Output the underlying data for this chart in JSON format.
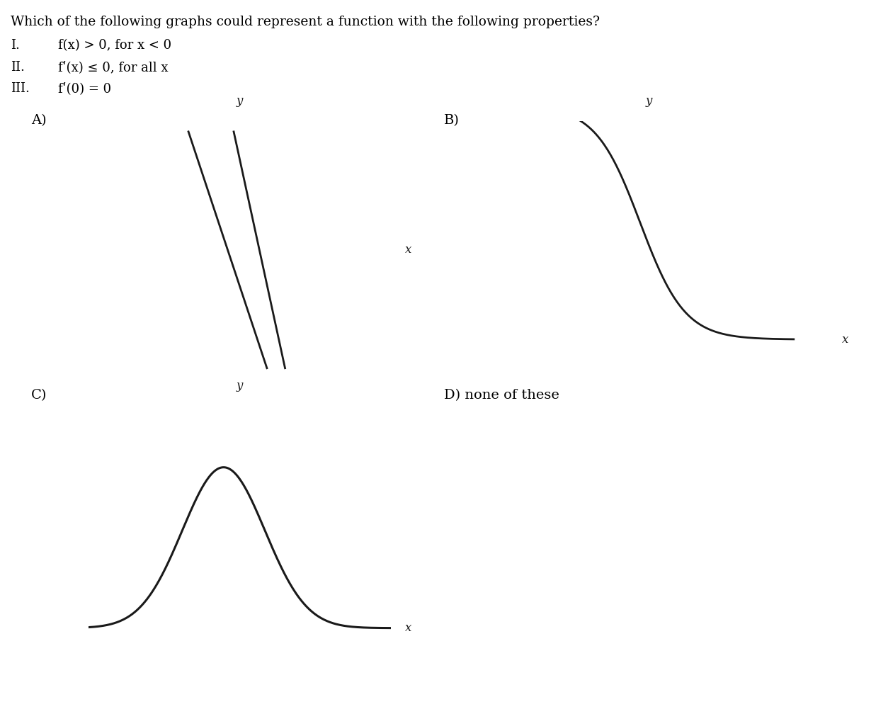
{
  "title_text": "Which of the following graphs could represent a function with the following properties?",
  "prop1": "I.   f(x) > 0, for x < 0",
  "prop2": "II.   fʹ(x) ≤ 0, for all x",
  "prop3": "III.  fʹ(0) = 0",
  "label_A": "A)",
  "label_B": "B)",
  "label_C": "C)",
  "label_D": "D) none of these",
  "bg_color": "#ffffff",
  "curve_color": "#1a1a1a",
  "axis_color": "#1a1a1a",
  "font_size_title": 13.5,
  "font_size_label": 14,
  "font_size_props": 13,
  "font_size_axis": 12
}
